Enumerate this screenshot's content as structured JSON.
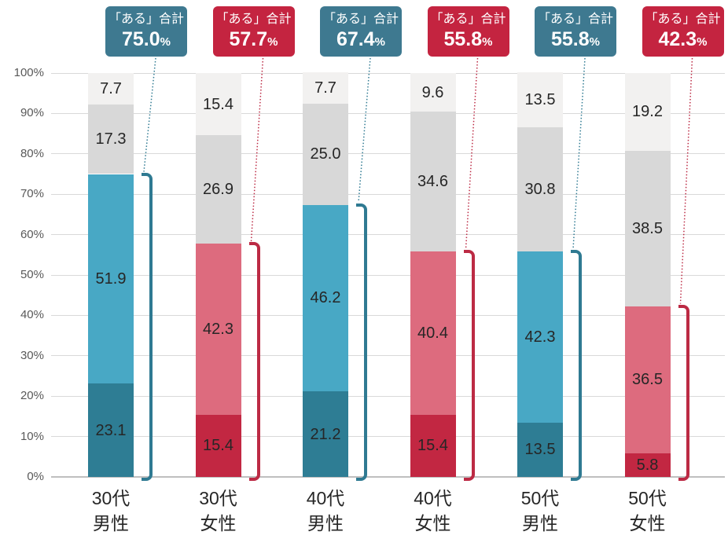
{
  "chart_data": {
    "type": "bar",
    "stacked": true,
    "orientation": "vertical",
    "percent_suffix": "%",
    "y_axis": {
      "min": 0,
      "max": 100,
      "grid": true,
      "ticks": [
        "0%",
        "10%",
        "20%",
        "30%",
        "40%",
        "50%",
        "60%",
        "70%",
        "80%",
        "90%",
        "100%"
      ]
    },
    "groups": [
      {
        "category_line1": "30代",
        "category_line2": "男性",
        "gender": "male",
        "segments": [
          "23.1",
          "51.9",
          "17.3",
          "7.7"
        ],
        "callout_label": "「ある」合計",
        "callout_value": "75.0"
      },
      {
        "category_line1": "30代",
        "category_line2": "女性",
        "gender": "female",
        "segments": [
          "15.4",
          "42.3",
          "26.9",
          "15.4"
        ],
        "callout_label": "「ある」合計",
        "callout_value": "57.7"
      },
      {
        "category_line1": "40代",
        "category_line2": "男性",
        "gender": "male",
        "segments": [
          "21.2",
          "46.2",
          "25.0",
          "7.7"
        ],
        "callout_label": "「ある」合計",
        "callout_value": "67.4"
      },
      {
        "category_line1": "40代",
        "category_line2": "女性",
        "gender": "female",
        "segments": [
          "15.4",
          "40.4",
          "34.6",
          "9.6"
        ],
        "callout_label": "「ある」合計",
        "callout_value": "55.8"
      },
      {
        "category_line1": "50代",
        "category_line2": "男性",
        "gender": "male",
        "segments": [
          "13.5",
          "42.3",
          "30.8",
          "13.5"
        ],
        "callout_label": "「ある」合計",
        "callout_value": "55.8"
      },
      {
        "category_line1": "50代",
        "category_line2": "女性",
        "gender": "female",
        "segments": [
          "5.8",
          "36.5",
          "38.5",
          "19.2"
        ],
        "callout_label": "「ある」合計",
        "callout_value": "42.3"
      }
    ]
  },
  "colors": {
    "male": {
      "segment_colors": [
        "#2E7D94",
        "#48A8C5",
        "#D8D8D8",
        "#F2F1F0"
      ],
      "callout_bg": "#3E7990",
      "bracket": "#2F7A92"
    },
    "female": {
      "segment_colors": [
        "#C22742",
        "#DD6B7E",
        "#D8D8D8",
        "#F2F1F0"
      ],
      "callout_bg": "#C42440",
      "bracket": "#BC2A44"
    },
    "gridline": "#D9D9D9",
    "axis_line": "#BFBFBF",
    "tick_text": "#595959",
    "value_text": "#262626",
    "category_text": "#262626",
    "callout_text": "#FFFFFF",
    "background": "#FFFFFF"
  }
}
